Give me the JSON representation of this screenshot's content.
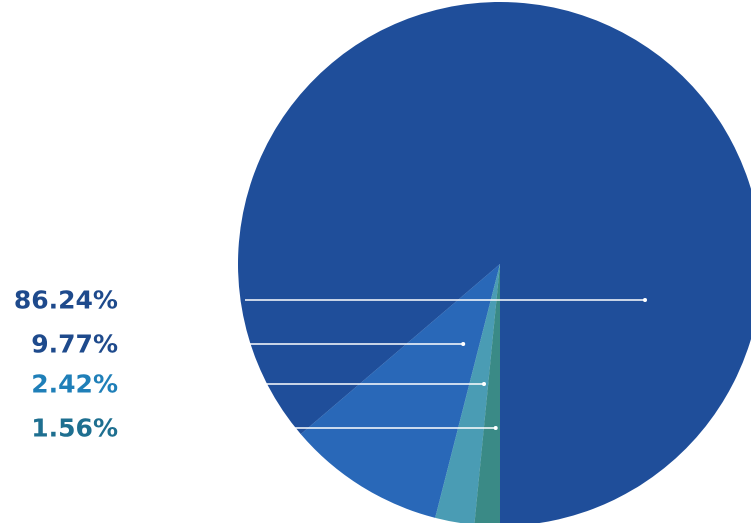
{
  "chart_data": {
    "type": "pie",
    "slices": [
      {
        "label": "86.24%",
        "value": 86.24,
        "color": "#1f4e9a",
        "label_color": "#1e4a8c"
      },
      {
        "label": "9.77%",
        "value": 9.77,
        "color": "#2968b8",
        "label_color": "#1e4a8c"
      },
      {
        "label": "2.42%",
        "value": 2.42,
        "color": "#4a9cb4",
        "label_color": "#1f7fb8"
      },
      {
        "label": "1.56%",
        "value": 1.56,
        "color": "#3a8a86",
        "label_color": "#1e6f90"
      }
    ],
    "start_direction": "down",
    "legend_placement": "left",
    "leader_line_color": "#ffffff"
  }
}
